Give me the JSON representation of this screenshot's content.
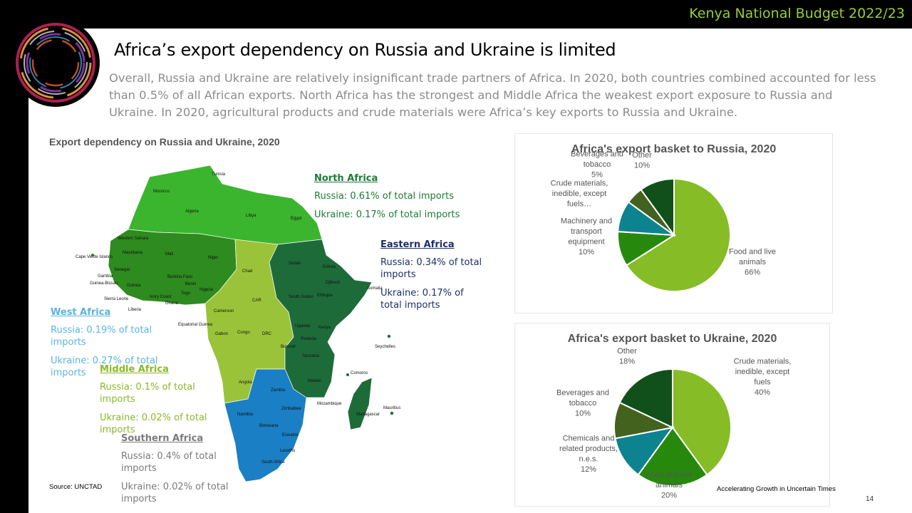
{
  "header": {
    "title": "Kenya National Budget 2022/23"
  },
  "title": "Africa’s export dependency on Russia and Ukraine is limited",
  "subtitle": "Overall, Russia and Ukraine are relatively insignificant trade partners of Africa. In 2020, both countries combined accounted for less than 0.5% of all African exports. North Africa has the strongest and Middle Africa the weakest export exposure to Russia and Ukraine. In 2020, agricultural products and crude materials were Africa’s key exports to Russia and Ukraine.",
  "map": {
    "title": "Export dependency on Russia and Ukraine, 2020",
    "colors": {
      "north": "#3cb52e",
      "west": "#2e8b1f",
      "middle": "#9bc33a",
      "eastern": "#1e6b3a",
      "southern": "#1a7fc4"
    },
    "countries": [
      "Tunisia",
      "Morocco",
      "Algeria",
      "Libya",
      "Egypt",
      "Western Sahara",
      "Mauritania",
      "Mali",
      "Niger",
      "Chad",
      "Sudan",
      "Eritrea",
      "Djibouti",
      "Somalia",
      "Ethiopia",
      "South Sudan",
      "CAR",
      "Cameroon",
      "Nigeria",
      "Benin",
      "Togo",
      "Ghana",
      "Ivory Coast",
      "Burkina Faso",
      "Guinea",
      "Guinea-Bissau",
      "Gambia",
      "Senegal",
      "Cape Verde Islands",
      "Sierra Leone",
      "Liberia",
      "Equatorial Guinea",
      "Gabon",
      "Congo",
      "DRC",
      "Uganda",
      "Kenya",
      "Rwanda",
      "Burundi",
      "Tanzania",
      "Angola",
      "Zambia",
      "Malawi",
      "Mozambique",
      "Zimbabwe",
      "Namibia",
      "Botswana",
      "Eswatini",
      "Lesotho",
      "South Africa",
      "Madagascar",
      "Comoros",
      "Seychelles",
      "Mauritius"
    ],
    "regions": {
      "north": {
        "name": "North Africa",
        "russia": "Russia: 0.61% of total imports",
        "ukraine": "Ukraine: 0.17% of total imports",
        "color": "#1e7b34"
      },
      "eastern": {
        "name": "Eastern Africa",
        "russia": "Russia: 0.34% of total imports",
        "ukraine": "Ukraine: 0.17% of total imports",
        "color": "#1f2f6b"
      },
      "west": {
        "name": "West Africa",
        "russia": "Russia: 0.19% of total imports",
        "ukraine": "Ukraine: 0.27% of total imports",
        "color": "#5ab4e0"
      },
      "middle": {
        "name": "Middle Africa",
        "russia": "Russia: 0.1% of total imports",
        "ukraine": "Ukraine: 0.02% of total imports",
        "color": "#8bb82a"
      },
      "southern": {
        "name": "Southern Africa",
        "russia": "Russia: 0.4% of total imports",
        "ukraine": "Ukraine: 0.02% of total imports",
        "color": "#7a7a7a"
      }
    }
  },
  "chart_data": [
    {
      "type": "pie",
      "title": "Africa's export basket to Russia, 2020",
      "slices": [
        {
          "label": "Food and live animals",
          "pct": "66%",
          "value": 66,
          "color": "#86bc25"
        },
        {
          "label": "Machinery and transport equipment",
          "pct": "10%",
          "value": 10,
          "color": "#26890d"
        },
        {
          "label": "Crude materials, inedible, except fuels…",
          "pct": "",
          "value": 9,
          "color": "#0d8390"
        },
        {
          "label": "Beverages and tobacco",
          "pct": "5%",
          "value": 5,
          "color": "#43621d"
        },
        {
          "label": "Other",
          "pct": "10%",
          "value": 10,
          "color": "#12501b"
        }
      ]
    },
    {
      "type": "pie",
      "title": "Africa's export basket to Ukraine, 2020",
      "slices": [
        {
          "label": "Crude materials, inedible, except fuels",
          "pct": "40%",
          "value": 40,
          "color": "#86bc25"
        },
        {
          "label": "Food and live animals",
          "pct": "20%",
          "value": 20,
          "color": "#26890d"
        },
        {
          "label": "Chemicals and related products, n.e.s.",
          "pct": "12%",
          "value": 12,
          "color": "#0d8390"
        },
        {
          "label": "Beverages and tobacco",
          "pct": "10%",
          "value": 10,
          "color": "#43621d"
        },
        {
          "label": "Other",
          "pct": "18%",
          "value": 18,
          "color": "#12501b"
        }
      ]
    }
  ],
  "source": "Source: UNCTAD",
  "footer": "Accelerating Growth in Uncertain Times",
  "page_number": "14"
}
